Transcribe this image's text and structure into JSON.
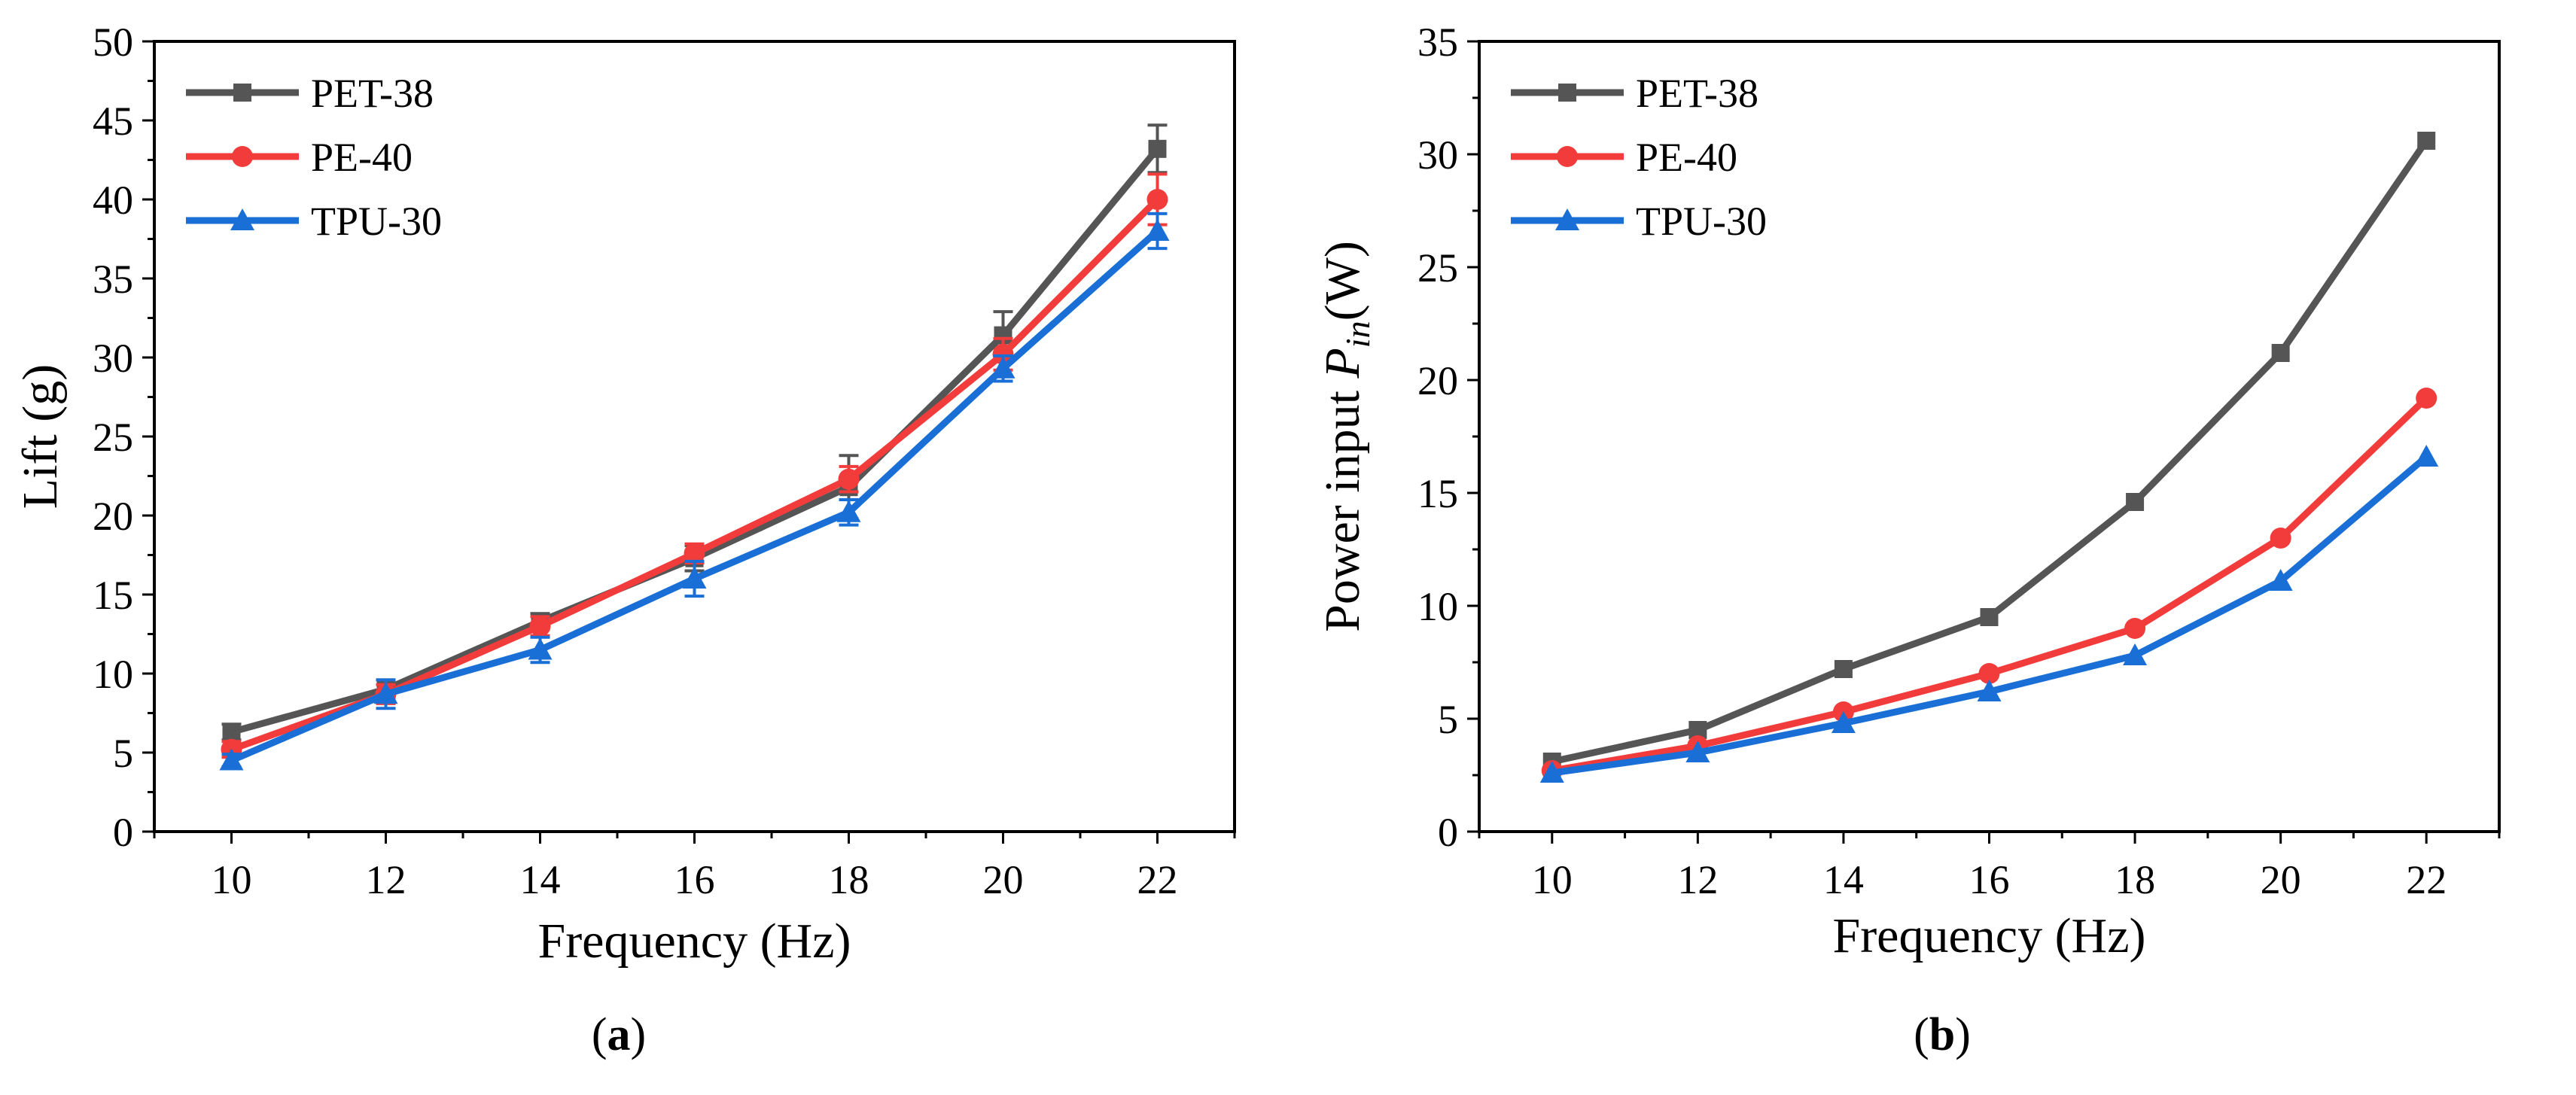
{
  "chart_data": [
    {
      "type": "line",
      "panel_label": {
        "open": "(",
        "letter": "a",
        "close": ")"
      },
      "title": "",
      "xlabel": "Frequency (Hz)",
      "ylabel": "Lift (g)",
      "x": [
        10,
        12,
        14,
        16,
        18,
        20,
        22
      ],
      "xlim": [
        9,
        23
      ],
      "ylim": [
        0,
        50
      ],
      "xticks": [
        10,
        12,
        14,
        16,
        18,
        20,
        22
      ],
      "yticks": [
        0,
        5,
        10,
        15,
        20,
        25,
        30,
        35,
        40,
        45,
        50
      ],
      "legend_position": "top-left",
      "series": [
        {
          "name": "PET-38",
          "color": "#555555",
          "marker": "square",
          "values": [
            6.3,
            9.0,
            13.3,
            17.3,
            21.8,
            31.4,
            43.2
          ],
          "errors": [
            0.5,
            0.6,
            0.5,
            0.8,
            2.0,
            1.5,
            1.5
          ]
        },
        {
          "name": "PE-40",
          "color": "#f23c3c",
          "marker": "circle",
          "values": [
            5.2,
            8.7,
            13.0,
            17.6,
            22.3,
            30.2,
            40.0
          ],
          "errors": [
            0.5,
            0.6,
            0.6,
            0.6,
            0.8,
            1.0,
            1.6
          ]
        },
        {
          "name": "TPU-30",
          "color": "#1a6fd6",
          "marker": "triangle",
          "values": [
            4.5,
            8.7,
            11.5,
            16.0,
            20.2,
            29.3,
            38.0
          ],
          "errors": [
            0.4,
            0.9,
            0.8,
            1.1,
            0.8,
            0.8,
            1.1
          ]
        }
      ]
    },
    {
      "type": "line",
      "panel_label": {
        "open": "(",
        "letter": "b",
        "close": ")"
      },
      "title": "",
      "xlabel": "Frequency (Hz)",
      "ylabel": {
        "prefix": "Power input ",
        "symbol": "P",
        "subscript": "in",
        "suffix": "(W)"
      },
      "x": [
        10,
        12,
        14,
        16,
        18,
        20,
        22
      ],
      "xlim": [
        9,
        23
      ],
      "ylim": [
        0,
        35
      ],
      "xticks": [
        10,
        12,
        14,
        16,
        18,
        20,
        22
      ],
      "yticks": [
        0,
        5,
        10,
        15,
        20,
        25,
        30,
        35
      ],
      "legend_position": "top-left",
      "series": [
        {
          "name": "PET-38",
          "color": "#555555",
          "marker": "square",
          "values": [
            3.1,
            4.5,
            7.2,
            9.5,
            14.6,
            21.2,
            30.6
          ]
        },
        {
          "name": "PE-40",
          "color": "#f23c3c",
          "marker": "circle",
          "values": [
            2.7,
            3.8,
            5.3,
            7.0,
            9.0,
            13.0,
            19.2
          ]
        },
        {
          "name": "TPU-30",
          "color": "#1a6fd6",
          "marker": "triangle",
          "values": [
            2.6,
            3.5,
            4.8,
            6.2,
            7.8,
            11.1,
            16.6
          ]
        }
      ]
    }
  ]
}
